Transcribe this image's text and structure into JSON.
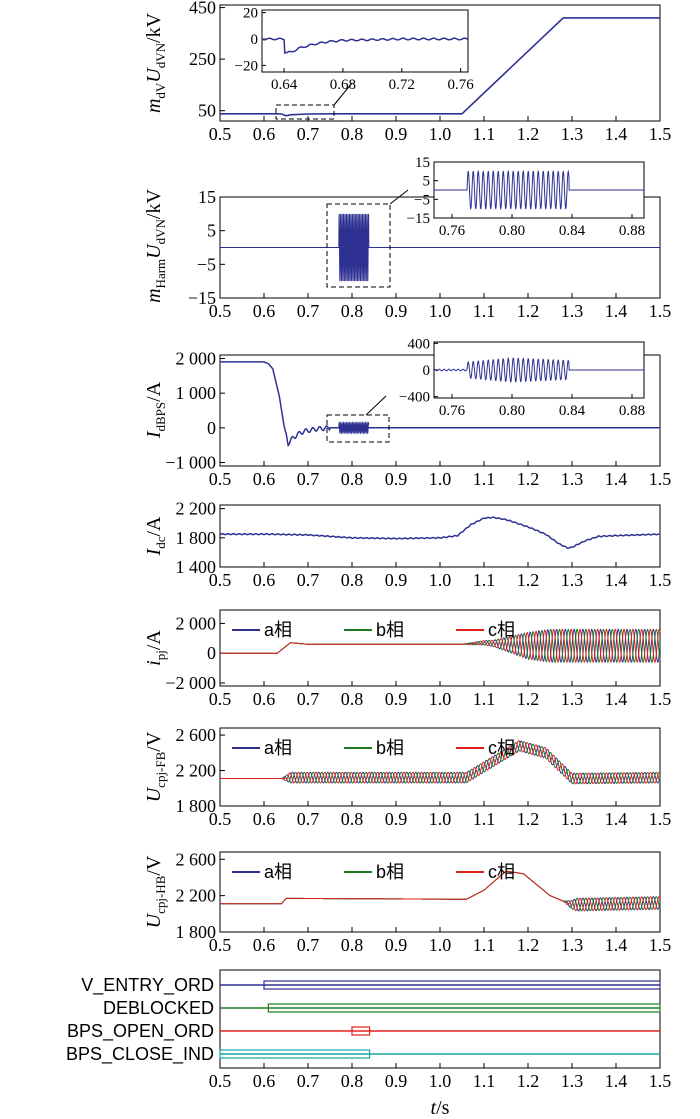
{
  "colors": {
    "phase_a": "#2e3192",
    "phase_b": "#1f7a1f",
    "phase_c": "#e0201b",
    "signal_teal": "#1aa4a4",
    "axes": "#000000"
  },
  "common_x": {
    "label_var": "t",
    "label_unit": "/s",
    "ticks": [
      "0.5",
      "0.6",
      "0.7",
      "0.8",
      "0.9",
      "1.0",
      "1.1",
      "1.2",
      "1.3",
      "1.4",
      "1.5"
    ],
    "range": [
      0.5,
      1.5
    ]
  },
  "legend": [
    "a相",
    "b相",
    "c相"
  ],
  "chart_data": [
    {
      "type": "line",
      "ylabel": {
        "main": "m",
        "sub": "dV",
        "main2": "U",
        "sub2": "dVN",
        "unit": "/kV"
      },
      "yticks": [
        "50",
        "250",
        "450"
      ],
      "ylim": [
        10,
        460
      ],
      "series": [
        {
          "x": [
            0.5,
            0.63,
            0.64,
            0.65,
            0.66,
            0.7,
            0.75,
            0.8,
            1.05,
            1.28,
            1.5
          ],
          "y": [
            38,
            38,
            37,
            30,
            34,
            37,
            38,
            38,
            38,
            410,
            410
          ]
        }
      ],
      "inset": {
        "xticks": [
          "0.64",
          "0.68",
          "0.72",
          "0.76"
        ],
        "yticks": [
          "20",
          "0",
          "−20"
        ],
        "xlim": [
          0.625,
          0.765
        ],
        "ylim": [
          -25,
          22
        ],
        "series": [
          {
            "x": [
              0.625,
              0.64,
              0.6401,
              0.645,
              0.65,
              0.66,
              0.67,
              0.68,
              0.7,
              0.72,
              0.765
            ],
            "y": [
              0,
              0,
              -10,
              -10,
              -7,
              -4,
              -2,
              -1,
              -0.5,
              0,
              0
            ]
          }
        ]
      }
    },
    {
      "type": "line",
      "ylabel": {
        "main": "m",
        "sub": "Harm",
        "main2": "U",
        "sub2": "dVN",
        "unit": "/kV"
      },
      "yticks": [
        "15",
        "5",
        "−5",
        "−15"
      ],
      "ylim": [
        -15,
        15
      ],
      "series": [
        {
          "baseline": 0,
          "burst": {
            "start": 0.77,
            "end": 0.838,
            "amplitude": 10,
            "freq_hz": 300
          }
        }
      ],
      "inset": {
        "xticks": [
          "0.76",
          "0.80",
          "0.84",
          "0.88"
        ],
        "yticks": [
          "15",
          "5",
          "−5",
          "−15"
        ],
        "xlim": [
          0.748,
          0.888
        ],
        "ylim": [
          -15,
          15
        ]
      }
    },
    {
      "type": "line",
      "ylabel": {
        "main": "I",
        "sub": "dBPS",
        "unit": "/A"
      },
      "yticks": [
        "2 000",
        "1 000",
        "0",
        "−1 000"
      ],
      "ylim": [
        -1100,
        2100
      ],
      "series": [
        {
          "x": [
            0.5,
            0.6,
            0.61,
            0.62,
            0.635,
            0.645,
            0.655,
            0.665,
            0.675,
            0.69,
            0.7,
            0.72,
            0.75,
            0.77,
            0.84,
            1.5
          ],
          "y": [
            1900,
            1900,
            1850,
            1700,
            900,
            100,
            -450,
            -300,
            -200,
            -100,
            -80,
            -30,
            0,
            0,
            0,
            0
          ]
        }
      ],
      "inset": {
        "xticks": [
          "0.76",
          "0.80",
          "0.84",
          "0.88"
        ],
        "yticks": [
          "400",
          "0",
          "−400"
        ],
        "xlim": [
          0.748,
          0.888
        ],
        "ylim": [
          -420,
          420
        ]
      }
    },
    {
      "type": "line",
      "ylabel": {
        "main": "I",
        "sub": "dc",
        "unit": "/A"
      },
      "yticks": [
        "2 200",
        "1 800",
        "1 400"
      ],
      "ylim": [
        1400,
        2250
      ],
      "series": [
        {
          "x": [
            0.5,
            0.62,
            0.65,
            0.7,
            0.75,
            0.8,
            0.9,
            1.0,
            1.04,
            1.07,
            1.1,
            1.12,
            1.15,
            1.2,
            1.24,
            1.27,
            1.29,
            1.3,
            1.33,
            1.36,
            1.4,
            1.5
          ],
          "y": [
            1850,
            1850,
            1845,
            1840,
            1820,
            1800,
            1790,
            1800,
            1830,
            1980,
            2070,
            2080,
            2050,
            1950,
            1850,
            1720,
            1660,
            1670,
            1760,
            1820,
            1830,
            1850
          ]
        }
      ]
    },
    {
      "type": "line",
      "ylabel": {
        "main": "i",
        "sub": "pj",
        "unit": "/A"
      },
      "yticks": [
        "2 000",
        "0",
        "−2 000"
      ],
      "ylim": [
        -2200,
        2900
      ],
      "series_kind": "three_phase_envelope",
      "offset": [
        [
          0.5,
          0
        ],
        [
          0.63,
          0
        ],
        [
          0.66,
          700
        ],
        [
          0.7,
          600
        ],
        [
          1.05,
          600
        ],
        [
          1.1,
          700
        ],
        [
          1.2,
          500
        ],
        [
          1.5,
          500
        ]
      ],
      "amp": [
        [
          0.5,
          0
        ],
        [
          1.05,
          0
        ],
        [
          1.12,
          200
        ],
        [
          1.2,
          900
        ],
        [
          1.25,
          1100
        ],
        [
          1.5,
          1100
        ]
      ]
    },
    {
      "type": "line",
      "ylabel": {
        "main": "U",
        "sub": "cpj-FB",
        "unit": "/V"
      },
      "yticks": [
        "2 600",
        "2 200",
        "1 800"
      ],
      "ylim": [
        1800,
        2680
      ],
      "series_kind": "three_phase_envelope",
      "offset": [
        [
          0.5,
          2110
        ],
        [
          0.64,
          2110
        ],
        [
          0.66,
          2120
        ],
        [
          1.06,
          2120
        ],
        [
          1.12,
          2300
        ],
        [
          1.18,
          2480
        ],
        [
          1.24,
          2400
        ],
        [
          1.3,
          2110
        ],
        [
          1.5,
          2120
        ]
      ],
      "amp": [
        [
          0.5,
          0
        ],
        [
          0.64,
          0
        ],
        [
          0.66,
          60
        ],
        [
          1.5,
          60
        ]
      ]
    },
    {
      "type": "line",
      "ylabel": {
        "main": "U",
        "sub": "cpj-HB",
        "unit": "/V"
      },
      "yticks": [
        "2 600",
        "2 200",
        "1 800"
      ],
      "ylim": [
        1800,
        2680
      ],
      "series_kind": "three_phase_envelope",
      "offset": [
        [
          0.5,
          2110
        ],
        [
          0.64,
          2110
        ],
        [
          0.65,
          2170
        ],
        [
          1.06,
          2160
        ],
        [
          1.1,
          2260
        ],
        [
          1.15,
          2470
        ],
        [
          1.19,
          2440
        ],
        [
          1.25,
          2200
        ],
        [
          1.3,
          2100
        ],
        [
          1.5,
          2120
        ]
      ],
      "amp": [
        [
          0.5,
          0
        ],
        [
          1.28,
          0
        ],
        [
          1.31,
          70
        ],
        [
          1.5,
          70
        ]
      ]
    },
    {
      "type": "digital",
      "signals": [
        {
          "name": "V_ENTRY_ORD",
          "color": "#2e3192",
          "on": 0.6
        },
        {
          "name": "DEBLOCKED",
          "color": "#1f7a1f",
          "on": 0.61
        },
        {
          "name": "BPS_OPEN_ORD",
          "color": "#e0201b",
          "pulse": [
            0.8,
            0.84
          ]
        },
        {
          "name": "BPS_CLOSE_IND",
          "color": "#1aa4a4",
          "off": 0.84
        }
      ]
    }
  ]
}
